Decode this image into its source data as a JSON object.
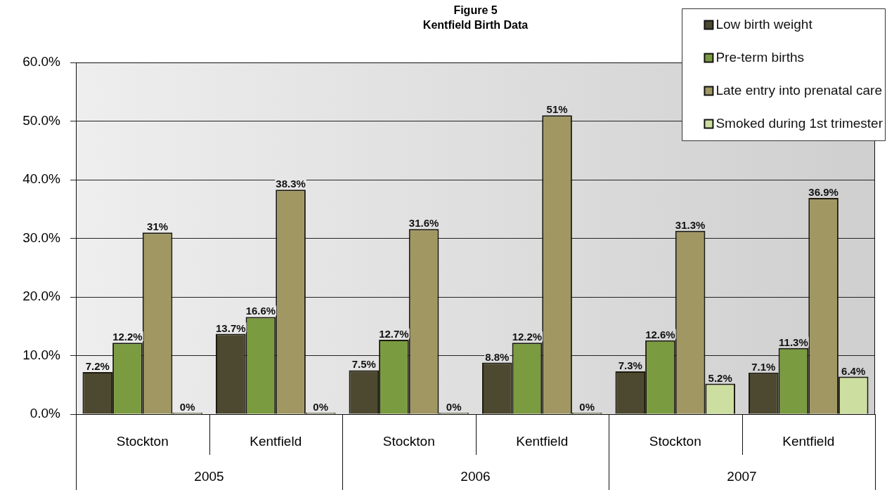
{
  "chart_data": {
    "type": "bar",
    "title": "Figure 5",
    "subtitle": "Kentfield Birth Data",
    "categories": [
      "Stockton",
      "Kentfield",
      "Stockton",
      "Kentfield",
      "Stockton",
      "Kentfield"
    ],
    "annotations": [
      "2005",
      "2006",
      "2007"
    ],
    "series": [
      {
        "name": "Low birth weight",
        "color": "#4d4930",
        "values": [
          7.2,
          13.7,
          7.5,
          8.8,
          7.3,
          7.1
        ],
        "value_labels": [
          "7.2%",
          "13.7%",
          "7.5%",
          "8.8%",
          "7.3%",
          "7.1%"
        ]
      },
      {
        "name": "Pre-term births",
        "color": "#7a9b3f",
        "values": [
          12.2,
          16.6,
          12.7,
          12.2,
          12.6,
          11.3
        ],
        "value_labels": [
          "12.2%",
          "16.6%",
          "12.7%",
          "12.2%",
          "12.6%",
          "11.3%"
        ]
      },
      {
        "name": "Late entry into prenatal care",
        "color": "#a19763",
        "values": [
          31,
          38.3,
          31.6,
          51,
          31.3,
          36.9
        ],
        "value_labels": [
          "31%",
          "38.3%",
          "31.6%",
          "51%",
          "31.3%",
          "36.9%"
        ]
      },
      {
        "name": "Smoked during 1st trimester",
        "color": "#cddfa0",
        "values": [
          0,
          0,
          0,
          0,
          5.2,
          6.4
        ],
        "value_labels": [
          "0%",
          "0%",
          "0%",
          "0%",
          "5.2%",
          "6.4%"
        ]
      }
    ],
    "ylim": [
      0,
      60
    ],
    "yticks": [
      {
        "value": 0,
        "label": "0.0%"
      },
      {
        "value": 10,
        "label": "10.0%"
      },
      {
        "value": 20,
        "label": "20.0%"
      },
      {
        "value": 30,
        "label": "30.0%"
      },
      {
        "value": 40,
        "label": "40.0%"
      },
      {
        "value": 50,
        "label": "50.0%"
      },
      {
        "value": 60,
        "label": "60.0%"
      }
    ],
    "grid": "y",
    "legend": "top right"
  }
}
